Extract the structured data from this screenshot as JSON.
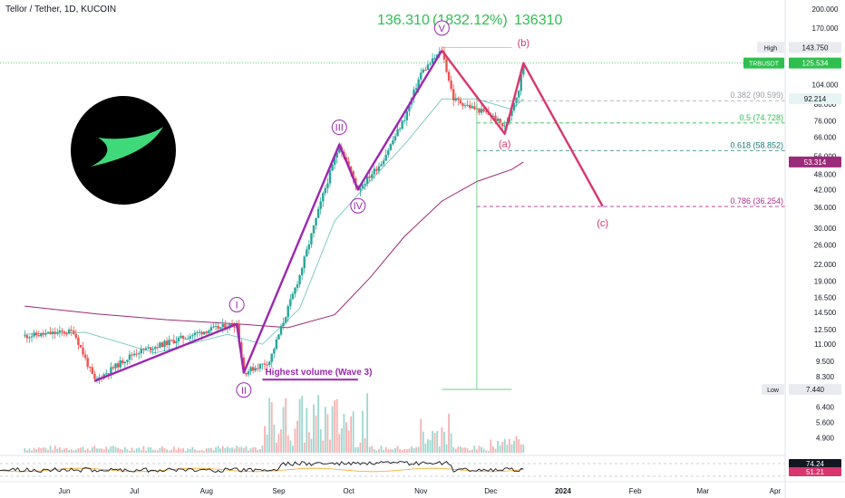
{
  "header": {
    "symbol": "Tellor / Tether, 1D, KUCOIN"
  },
  "measure": {
    "value": "136.310",
    "percent": "(1832.12%)",
    "ticks": "136310"
  },
  "colors": {
    "up": "#26a69a",
    "down": "#ef5350",
    "wave_impulse": "#9c27b0",
    "wave_correction": "#d9366e",
    "ma_fast": "#80cbc4",
    "ma_slow": "#9c2a7a",
    "fib": "#787b86",
    "measure": "#2fbf4f"
  },
  "chart_data": {
    "type": "line",
    "title": "Tellor / Tether, 1D, KUCOIN",
    "y_scale": "log",
    "ylim": [
      4.3,
      210
    ],
    "y_ticks": [
      "200.000",
      "170.000",
      "143.750",
      "125.534",
      "104.000",
      "92.214",
      "88.000",
      "76.000",
      "66.000",
      "56.000",
      "53.314",
      "48.000",
      "42.000",
      "36.000",
      "30.000",
      "26.000",
      "22.000",
      "19.000",
      "16.500",
      "14.500",
      "12.500",
      "11.000",
      "9.500",
      "8.300",
      "7.440",
      "6.400",
      "5.600",
      "4.900"
    ],
    "x_ticks": [
      "Jun",
      "Jul",
      "Aug",
      "Sep",
      "Oct",
      "Nov",
      "Dec",
      "2024",
      "Feb",
      "Mar",
      "Apr"
    ],
    "price_badges": [
      {
        "label": "High",
        "value": "143.750"
      },
      {
        "label": "TRBUSDT",
        "value": "125.534"
      },
      {
        "label": "",
        "value": "92.214"
      },
      {
        "label": "",
        "value": "53.314"
      },
      {
        "label": "Low",
        "value": "7.440"
      }
    ],
    "indicator": {
      "values": [
        "74.24",
        "51.21"
      ]
    },
    "price_series": [
      {
        "date": "2023-05-15",
        "close": 11.8
      },
      {
        "date": "2023-06-05",
        "close": 12.3
      },
      {
        "date": "2023-06-14",
        "close": 8.0
      },
      {
        "date": "2023-07-01",
        "close": 10.2
      },
      {
        "date": "2023-08-01",
        "close": 12.4
      },
      {
        "date": "2023-08-14",
        "close": 13.1
      },
      {
        "date": "2023-08-17",
        "close": 8.6
      },
      {
        "date": "2023-08-28",
        "close": 9.5
      },
      {
        "date": "2023-09-10",
        "close": 20.0
      },
      {
        "date": "2023-09-20",
        "close": 40.0
      },
      {
        "date": "2023-09-27",
        "close": 62.0
      },
      {
        "date": "2023-10-05",
        "close": 42.0
      },
      {
        "date": "2023-10-15",
        "close": 53.0
      },
      {
        "date": "2023-10-25",
        "close": 78.0
      },
      {
        "date": "2023-11-01",
        "close": 115.0
      },
      {
        "date": "2023-11-10",
        "close": 140.0
      },
      {
        "date": "2023-11-15",
        "close": 92.0
      },
      {
        "date": "2023-11-22",
        "close": 86.0
      },
      {
        "date": "2023-12-01",
        "close": 80.0
      },
      {
        "date": "2023-12-07",
        "close": 72.0
      },
      {
        "date": "2023-12-13",
        "close": 100.0
      },
      {
        "date": "2023-12-15",
        "close": 125.5
      }
    ],
    "ma_fast_series": [
      {
        "date": "2023-05-15",
        "value": 12.0
      },
      {
        "date": "2023-06-10",
        "value": 12.2
      },
      {
        "date": "2023-07-10",
        "value": 10.2
      },
      {
        "date": "2023-08-10",
        "value": 12.0
      },
      {
        "date": "2023-08-25",
        "value": 11.0
      },
      {
        "date": "2023-09-10",
        "value": 15.0
      },
      {
        "date": "2023-09-25",
        "value": 32.0
      },
      {
        "date": "2023-10-10",
        "value": 45.0
      },
      {
        "date": "2023-10-25",
        "value": 62.0
      },
      {
        "date": "2023-11-10",
        "value": 92.0
      },
      {
        "date": "2023-11-25",
        "value": 92.0
      },
      {
        "date": "2023-12-10",
        "value": 84.0
      },
      {
        "date": "2023-12-15",
        "value": 92.2
      }
    ],
    "ma_slow_series": [
      {
        "date": "2023-05-15",
        "value": 15.3
      },
      {
        "date": "2023-06-15",
        "value": 14.3
      },
      {
        "date": "2023-07-15",
        "value": 13.6
      },
      {
        "date": "2023-08-15",
        "value": 13.1
      },
      {
        "date": "2023-09-05",
        "value": 12.7
      },
      {
        "date": "2023-09-25",
        "value": 14.2
      },
      {
        "date": "2023-10-10",
        "value": 19.5
      },
      {
        "date": "2023-10-25",
        "value": 28.0
      },
      {
        "date": "2023-11-10",
        "value": 38.0
      },
      {
        "date": "2023-11-25",
        "value": 45.0
      },
      {
        "date": "2023-12-10",
        "value": 50.0
      },
      {
        "date": "2023-12-15",
        "value": 53.3
      }
    ],
    "wave_impulse": {
      "points": [
        {
          "date": "2023-06-14",
          "price": 8.0
        },
        {
          "date": "2023-08-14",
          "price": 13.1
        },
        {
          "date": "2023-08-17",
          "price": 8.6
        },
        {
          "date": "2023-09-27",
          "price": 62.0
        },
        {
          "date": "2023-10-05",
          "price": 42.0
        },
        {
          "date": "2023-11-10",
          "price": 140.0
        }
      ],
      "labels": [
        {
          "text": "I",
          "date": "2023-08-14",
          "price": 15.5
        },
        {
          "text": "II",
          "date": "2023-08-17",
          "price": 7.4
        },
        {
          "text": "III",
          "date": "2023-09-27",
          "price": 72.0
        },
        {
          "text": "IV",
          "date": "2023-10-05",
          "price": 36.5
        },
        {
          "text": "V",
          "date": "2023-11-10",
          "price": 170.0
        }
      ]
    },
    "wave_correction": {
      "points": [
        {
          "date": "2023-11-10",
          "price": 140.0
        },
        {
          "date": "2023-12-07",
          "price": 68.0
        },
        {
          "date": "2023-12-15",
          "price": 125.5
        },
        {
          "date": "2024-01-18",
          "price": 36.3
        }
      ],
      "labels": [
        {
          "text": "(a)",
          "date": "2023-12-07",
          "price": 62.5
        },
        {
          "text": "(b)",
          "date": "2023-12-15",
          "price": 150.0
        },
        {
          "text": "(c)",
          "date": "2024-01-18",
          "price": 31.5
        }
      ]
    },
    "fib_levels": [
      {
        "label": "0.382 (90.599)",
        "price": 90.599
      },
      {
        "label": "0.5 (74.728)",
        "price": 74.728
      },
      {
        "label": "0.618 (58.852)",
        "price": 58.852
      },
      {
        "label": "0.786 (36.254)",
        "price": 36.254
      }
    ],
    "volume_annotation": {
      "text": "Highest volume (Wave 3)",
      "start": "2023-08-25",
      "end": "2023-10-05",
      "price": 8.1
    }
  }
}
